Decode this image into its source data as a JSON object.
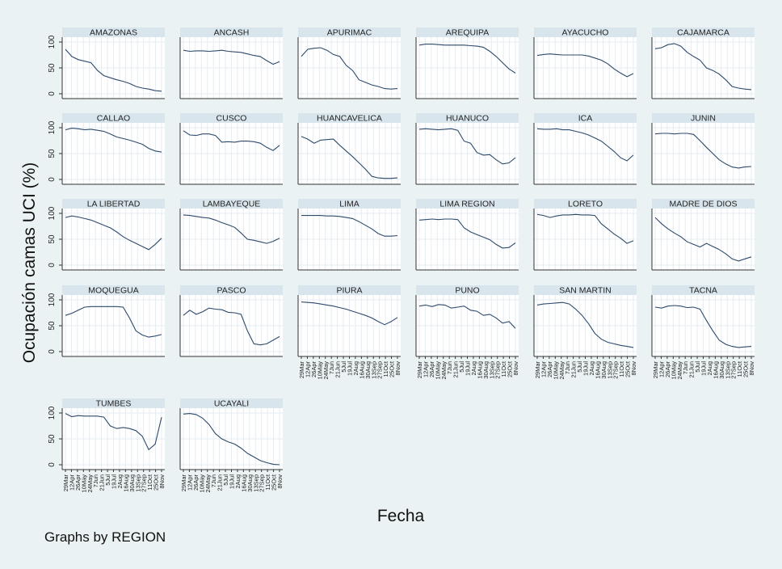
{
  "chart_data": {
    "type": "line",
    "ylabel": "Ocupación camas UCI (%)",
    "xlabel": "Fecha",
    "note": "Graphs by REGION",
    "ylim": [
      0,
      100
    ],
    "yticks": [
      0,
      50,
      100
    ],
    "xticks": [
      "29Mar",
      "12Apr",
      "26Apr",
      "10May",
      "24May",
      "7Jun",
      "21Jun",
      "5Jul",
      "19Jul",
      "2Aug",
      "16Aug",
      "30Aug",
      "13Sep",
      "27Sep",
      "11Oct",
      "25Oct",
      "8Nov"
    ],
    "grid": true,
    "series": [
      {
        "name": "AMAZONAS",
        "values": [
          86,
          72,
          66,
          63,
          60,
          45,
          35,
          31,
          27,
          24,
          20,
          14,
          11,
          9,
          6,
          5
        ]
      },
      {
        "name": "ANCASH",
        "values": [
          84,
          82,
          83,
          83,
          82,
          83,
          84,
          82,
          81,
          80,
          77,
          74,
          72,
          64,
          57,
          62
        ]
      },
      {
        "name": "APURIMAC",
        "values": [
          72,
          86,
          88,
          89,
          84,
          76,
          72,
          55,
          45,
          27,
          22,
          17,
          14,
          10,
          9,
          10
        ]
      },
      {
        "name": "AREQUIPA",
        "values": [
          94,
          96,
          96,
          95,
          94,
          94,
          94,
          94,
          93,
          92,
          90,
          82,
          72,
          60,
          48,
          40
        ]
      },
      {
        "name": "AYACUCHO",
        "values": [
          74,
          76,
          77,
          76,
          75,
          75,
          75,
          75,
          73,
          69,
          65,
          58,
          48,
          40,
          33,
          39
        ]
      },
      {
        "name": "CAJAMARCA",
        "values": [
          87,
          89,
          95,
          97,
          92,
          80,
          72,
          65,
          50,
          45,
          38,
          27,
          14,
          11,
          9,
          8
        ]
      },
      {
        "name": "CALLAO",
        "values": [
          96,
          99,
          98,
          96,
          97,
          95,
          93,
          88,
          82,
          79,
          76,
          72,
          68,
          60,
          55,
          53
        ]
      },
      {
        "name": "CUSCO",
        "values": [
          94,
          86,
          85,
          88,
          88,
          85,
          72,
          73,
          72,
          74,
          74,
          73,
          70,
          62,
          56,
          66
        ]
      },
      {
        "name": "HUANCAVELICA",
        "values": [
          83,
          78,
          70,
          76,
          77,
          78,
          66,
          55,
          44,
          32,
          20,
          6,
          3,
          2,
          2,
          3
        ]
      },
      {
        "name": "HUANUCO",
        "values": [
          97,
          98,
          97,
          96,
          97,
          98,
          95,
          74,
          70,
          52,
          47,
          48,
          38,
          30,
          32,
          42
        ]
      },
      {
        "name": "ICA",
        "values": [
          98,
          97,
          97,
          98,
          96,
          96,
          93,
          90,
          86,
          80,
          74,
          64,
          54,
          42,
          36,
          47
        ]
      },
      {
        "name": "JUNIN",
        "values": [
          88,
          89,
          89,
          88,
          89,
          89,
          87,
          75,
          62,
          50,
          38,
          30,
          24,
          22,
          24,
          25
        ]
      },
      {
        "name": "LA LIBERTAD",
        "values": [
          92,
          95,
          93,
          90,
          87,
          82,
          77,
          72,
          64,
          55,
          48,
          42,
          36,
          30,
          40,
          52
        ]
      },
      {
        "name": "LAMBAYEQUE",
        "values": [
          97,
          96,
          94,
          92,
          91,
          87,
          82,
          78,
          73,
          62,
          50,
          48,
          45,
          42,
          46,
          52
        ]
      },
      {
        "name": "LIMA",
        "values": [
          96,
          96,
          96,
          96,
          95,
          95,
          94,
          92,
          90,
          84,
          77,
          70,
          61,
          56,
          56,
          57
        ]
      },
      {
        "name": "LIMA REGION",
        "values": [
          87,
          88,
          89,
          88,
          89,
          89,
          88,
          72,
          64,
          59,
          54,
          49,
          40,
          33,
          34,
          43
        ]
      },
      {
        "name": "LORETO",
        "values": [
          98,
          96,
          92,
          95,
          97,
          97,
          98,
          97,
          97,
          96,
          80,
          70,
          60,
          52,
          42,
          47
        ]
      },
      {
        "name": "MADRE DE DIOS",
        "values": [
          92,
          80,
          70,
          62,
          55,
          45,
          40,
          35,
          42,
          36,
          30,
          22,
          12,
          8,
          12,
          16
        ]
      },
      {
        "name": "MOQUEGUA",
        "values": [
          70,
          74,
          80,
          86,
          87,
          87,
          87,
          87,
          87,
          86,
          65,
          40,
          32,
          28,
          30,
          33
        ]
      },
      {
        "name": "PASCO",
        "values": [
          70,
          80,
          72,
          77,
          84,
          82,
          81,
          76,
          75,
          72,
          40,
          15,
          13,
          15,
          22,
          29
        ]
      },
      {
        "name": "PIURA",
        "values": [
          96,
          95,
          94,
          92,
          90,
          88,
          85,
          82,
          78,
          74,
          70,
          65,
          58,
          52,
          58,
          66
        ]
      },
      {
        "name": "PUNO",
        "values": [
          88,
          90,
          87,
          91,
          90,
          84,
          86,
          88,
          80,
          78,
          70,
          72,
          65,
          55,
          58,
          45
        ]
      },
      {
        "name": "SAN MARTIN",
        "values": [
          90,
          92,
          93,
          94,
          95,
          92,
          82,
          70,
          54,
          35,
          24,
          18,
          15,
          12,
          10,
          8
        ]
      },
      {
        "name": "TACNA",
        "values": [
          86,
          84,
          88,
          89,
          88,
          85,
          86,
          82,
          60,
          40,
          22,
          14,
          10,
          8,
          9,
          10
        ]
      },
      {
        "name": "TUMBES",
        "values": [
          99,
          93,
          95,
          94,
          94,
          94,
          92,
          75,
          70,
          72,
          70,
          66,
          55,
          29,
          40,
          92
        ]
      },
      {
        "name": "UCAYALI",
        "values": [
          98,
          99,
          97,
          90,
          78,
          60,
          50,
          44,
          40,
          32,
          22,
          15,
          8,
          4,
          1,
          0
        ]
      }
    ]
  }
}
